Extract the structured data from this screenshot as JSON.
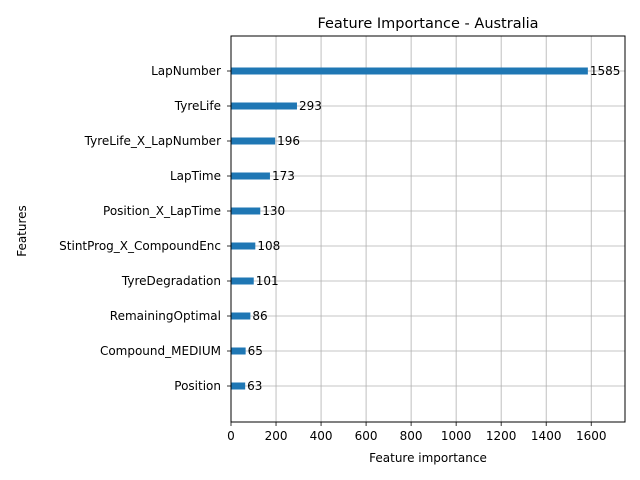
{
  "chart_data": {
    "type": "bar",
    "orientation": "horizontal",
    "title": "Feature Importance - Australia",
    "xlabel": "Feature importance",
    "ylabel": "Features",
    "xlim": [
      0,
      1750
    ],
    "xticks": [
      0,
      200,
      400,
      600,
      800,
      1000,
      1200,
      1400,
      1600
    ],
    "grid": true,
    "categories": [
      "LapNumber",
      "TyreLife",
      "TyreLife_X_LapNumber",
      "LapTime",
      "Position_X_LapTime",
      "StintProg_X_CompoundEnc",
      "TyreDegradation",
      "RemainingOptimal",
      "Compound_MEDIUM",
      "Position"
    ],
    "values": [
      1585,
      293,
      196,
      173,
      130,
      108,
      101,
      86,
      65,
      63
    ],
    "bar_color": "#1f77b4",
    "grid_color": "#b0b0b0"
  }
}
